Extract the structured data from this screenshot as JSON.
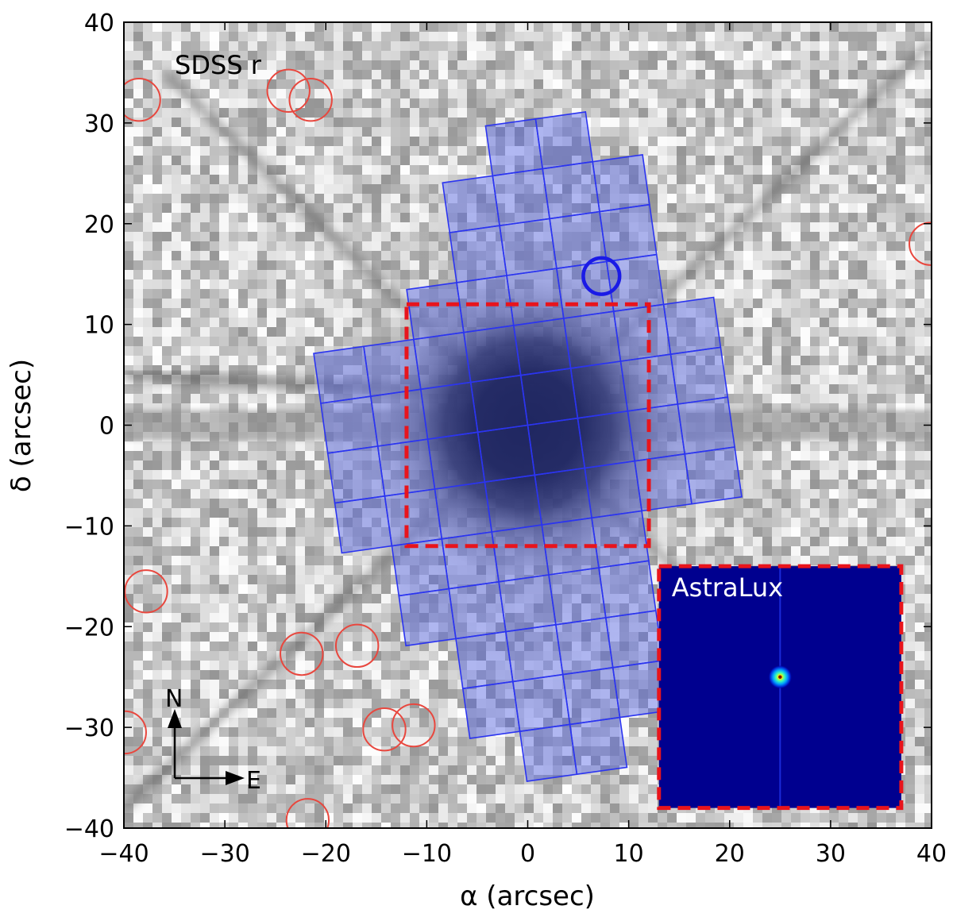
{
  "chart_data": {
    "type": "image",
    "band_label": "SDSS r",
    "xlabel": "α (arcsec)",
    "ylabel": "δ (arcsec)",
    "xlim": [
      -40,
      40
    ],
    "ylim": [
      -40,
      40
    ],
    "xticks": [
      -40,
      -30,
      -20,
      -10,
      0,
      10,
      20,
      30,
      40
    ],
    "yticks": [
      -40,
      -30,
      -20,
      -10,
      0,
      10,
      20,
      30,
      40
    ],
    "compass": {
      "north": "N",
      "east": "E"
    },
    "inset": {
      "label": "AstraLux",
      "extent": {
        "x": [
          13,
          37
        ],
        "y": [
          -38,
          -14
        ]
      },
      "source": [
        25,
        -25
      ]
    },
    "astralux_fov": {
      "x": [
        -12,
        12
      ],
      "y": [
        -12,
        12
      ]
    },
    "blue_circle": {
      "center": [
        7.3,
        14.8
      ],
      "radius": 1.8
    },
    "red_circles": [
      {
        "center": [
          -38.5,
          32.3
        ],
        "radius": 2.1
      },
      {
        "center": [
          -23.7,
          33.2
        ],
        "radius": 2.1
      },
      {
        "center": [
          -21.5,
          32.3
        ],
        "radius": 2.1
      },
      {
        "center": [
          39.9,
          18.0
        ],
        "radius": 2.1
      },
      {
        "center": [
          -37.8,
          -16.5
        ],
        "radius": 2.1
      },
      {
        "center": [
          -22.4,
          -22.7
        ],
        "radius": 2.1
      },
      {
        "center": [
          -16.9,
          -21.9
        ],
        "radius": 2.1
      },
      {
        "center": [
          -39.9,
          -30.5
        ],
        "radius": 2.1
      },
      {
        "center": [
          -14.2,
          -30.2
        ],
        "radius": 2.1
      },
      {
        "center": [
          -11.3,
          -29.8
        ],
        "radius": 2.1
      },
      {
        "center": [
          -21.8,
          -39.2
        ],
        "radius": 2.1
      }
    ],
    "ifu_grid": {
      "angle_deg": 8,
      "center": [
        0,
        0
      ],
      "cell": 5,
      "rows": [
        {
          "vc": 27.5,
          "u": [
            2.5,
            7.5
          ]
        },
        {
          "vc": 22.5,
          "u": [
            -2.5,
            12.5
          ]
        },
        {
          "vc": 17.5,
          "u": [
            -2.5,
            12.5
          ]
        },
        {
          "vc": 12.5,
          "u": [
            -7.5,
            12.5
          ]
        },
        {
          "vc": 7.5,
          "u": [
            -17.5,
            17.5
          ]
        },
        {
          "vc": 2.5,
          "u": [
            -17.5,
            17.5
          ]
        },
        {
          "vc": -2.5,
          "u": [
            -17.5,
            17.5
          ]
        },
        {
          "vc": -7.5,
          "u": [
            -17.5,
            17.5
          ]
        },
        {
          "vc": -12.5,
          "u": [
            -12.5,
            7.5
          ]
        },
        {
          "vc": -17.5,
          "u": [
            -12.5,
            7.5
          ]
        },
        {
          "vc": -22.5,
          "u": [
            -7.5,
            7.5
          ]
        },
        {
          "vc": -27.5,
          "u": [
            -7.5,
            7.5
          ]
        },
        {
          "vc": -32.5,
          "u": [
            -2.5,
            2.5
          ]
        }
      ]
    },
    "colors": {
      "ifu_fill": "#4d5ce8",
      "ifu_line": "#2b34f0",
      "fov_box": "#e8141c",
      "red_circle": "#e8473e",
      "blue_circle": "#1a1ae6",
      "inset_bg": "#00008f",
      "inset_text": "#ffffff"
    }
  }
}
